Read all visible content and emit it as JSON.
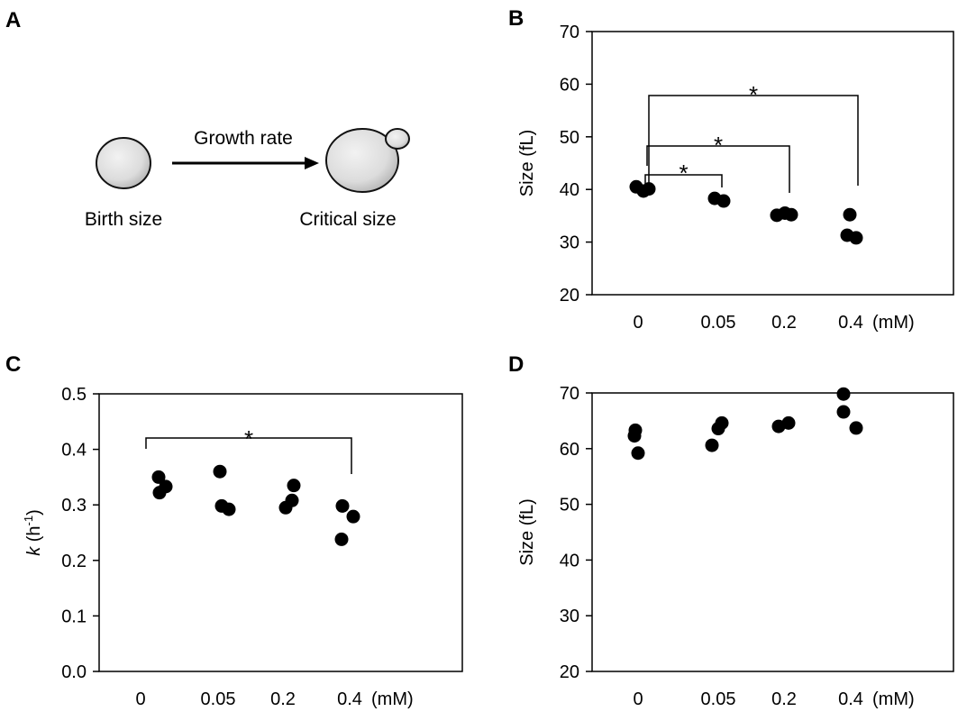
{
  "panel_labels": {
    "a": "A",
    "b": "B",
    "c": "C",
    "d": "D"
  },
  "diagram": {
    "birth_label": "Birth size",
    "arrow_label": "Growth rate",
    "critical_label": "Critical size"
  },
  "chart_data": [
    {
      "id": "B",
      "type": "scatter",
      "title": "",
      "xlabel": "",
      "ylabel": "Size (fL)",
      "categories": [
        "0",
        "0.05",
        "0.2",
        "0.4"
      ],
      "unit_label": "(mM)",
      "ylim": [
        20,
        70
      ],
      "yticks": [
        20,
        30,
        40,
        50,
        60,
        70
      ],
      "points": [
        {
          "cat": 0,
          "y": 40.5
        },
        {
          "cat": 0,
          "y": 39.7
        },
        {
          "cat": 0,
          "y": 40.1
        },
        {
          "cat": 1,
          "y": 38.3
        },
        {
          "cat": 1,
          "y": 37.8
        },
        {
          "cat": 2,
          "y": 35.1
        },
        {
          "cat": 2,
          "y": 35.5
        },
        {
          "cat": 2,
          "y": 35.2
        },
        {
          "cat": 3,
          "y": 35.2
        },
        {
          "cat": 3,
          "y": 31.3
        },
        {
          "cat": 3,
          "y": 30.8
        }
      ],
      "significance": [
        {
          "from": 0,
          "to": 1,
          "label": "*"
        },
        {
          "from": 0,
          "to": 2,
          "label": "*"
        },
        {
          "from": 0,
          "to": 3,
          "label": "*"
        }
      ],
      "grid": false
    },
    {
      "id": "C",
      "type": "scatter",
      "title": "",
      "xlabel": "",
      "ylabel_main": "k",
      "ylabel_rest": " (h",
      "ylabel_sup": "-1",
      "ylabel_end": ")",
      "categories": [
        "0",
        "0.05",
        "0.2",
        "0.4"
      ],
      "unit_label": "(mM)",
      "ylim": [
        0,
        0.5
      ],
      "yticks": [
        0,
        0.1,
        0.2,
        0.3,
        0.4,
        0.5
      ],
      "points": [
        {
          "cat": 0,
          "y": 0.35
        },
        {
          "cat": 0,
          "y": 0.322
        },
        {
          "cat": 0,
          "y": 0.333
        },
        {
          "cat": 1,
          "y": 0.36
        },
        {
          "cat": 1,
          "y": 0.298
        },
        {
          "cat": 1,
          "y": 0.292
        },
        {
          "cat": 2,
          "y": 0.335
        },
        {
          "cat": 2,
          "y": 0.308
        },
        {
          "cat": 2,
          "y": 0.295
        },
        {
          "cat": 3,
          "y": 0.298
        },
        {
          "cat": 3,
          "y": 0.279
        },
        {
          "cat": 3,
          "y": 0.238
        }
      ],
      "significance": [
        {
          "from": 0,
          "to": 3,
          "label": "*"
        }
      ],
      "grid": false
    },
    {
      "id": "D",
      "type": "scatter",
      "title": "",
      "xlabel": "",
      "ylabel": "Size (fL)",
      "categories": [
        "0",
        "0.05",
        "0.2",
        "0.4"
      ],
      "unit_label": "(mM)",
      "ylim": [
        20,
        70
      ],
      "yticks": [
        20,
        30,
        40,
        50,
        60,
        70
      ],
      "points": [
        {
          "cat": 0,
          "y": 63.3
        },
        {
          "cat": 0,
          "y": 62.3
        },
        {
          "cat": 0,
          "y": 59.2
        },
        {
          "cat": 1,
          "y": 64.6
        },
        {
          "cat": 1,
          "y": 63.6
        },
        {
          "cat": 1,
          "y": 60.6
        },
        {
          "cat": 2,
          "y": 64.6
        },
        {
          "cat": 2,
          "y": 64.0
        },
        {
          "cat": 3,
          "y": 69.8
        },
        {
          "cat": 3,
          "y": 66.6
        },
        {
          "cat": 3,
          "y": 63.7
        }
      ],
      "significance": [],
      "grid": false
    }
  ]
}
